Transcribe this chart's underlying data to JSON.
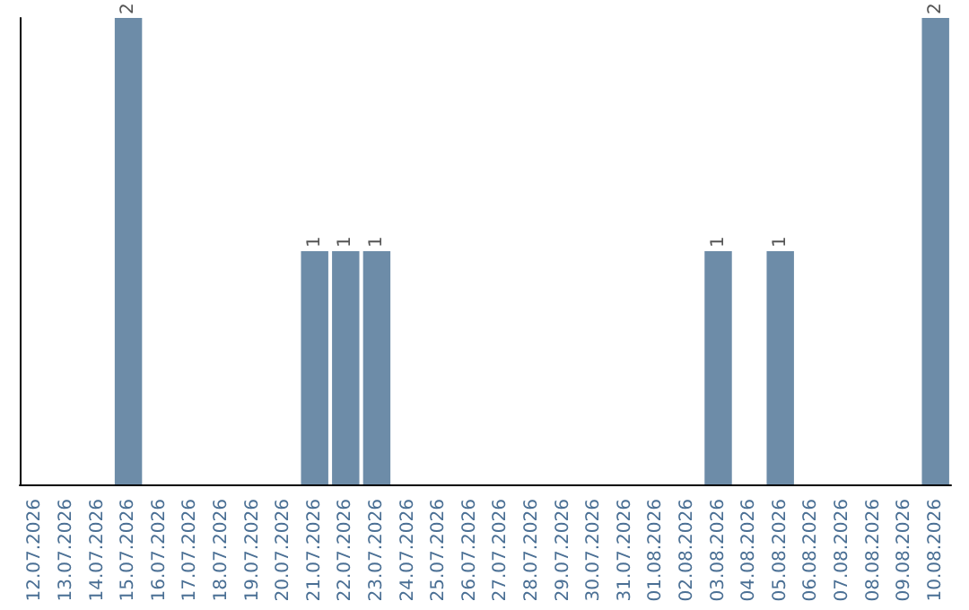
{
  "chart_data": {
    "type": "bar",
    "categories": [
      "12.07.2026",
      "13.07.2026",
      "14.07.2026",
      "15.07.2026",
      "16.07.2026",
      "17.07.2026",
      "18.07.2026",
      "19.07.2026",
      "20.07.2026",
      "21.07.2026",
      "22.07.2026",
      "23.07.2026",
      "24.07.2026",
      "25.07.2026",
      "26.07.2026",
      "27.07.2026",
      "28.07.2026",
      "29.07.2026",
      "30.07.2026",
      "31.07.2026",
      "01.08.2026",
      "02.08.2026",
      "03.08.2026",
      "04.08.2026",
      "05.08.2026",
      "06.08.2026",
      "07.08.2026",
      "08.08.2026",
      "09.08.2026",
      "10.08.2026"
    ],
    "values": [
      0,
      0,
      0,
      2,
      0,
      0,
      0,
      0,
      0,
      1,
      1,
      1,
      0,
      0,
      0,
      0,
      0,
      0,
      0,
      0,
      0,
      0,
      1,
      0,
      1,
      0,
      0,
      0,
      0,
      2
    ],
    "value_labels": [
      null,
      null,
      null,
      "2",
      null,
      null,
      null,
      null,
      null,
      "1",
      "1",
      "1",
      null,
      null,
      null,
      null,
      null,
      null,
      null,
      null,
      null,
      null,
      "1",
      null,
      "1",
      null,
      null,
      null,
      null,
      "2"
    ],
    "color": "#6d8ca8"
  }
}
